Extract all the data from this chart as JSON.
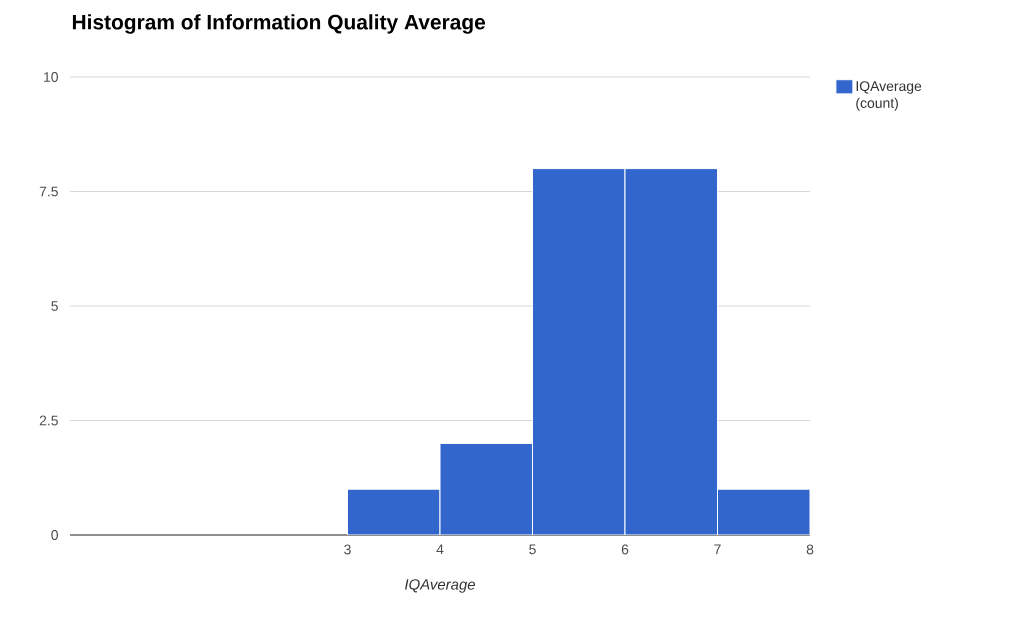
{
  "chart_data": {
    "type": "histogram",
    "title": "Histogram of Information Quality Average",
    "xlabel": "IQAverage",
    "bins": [
      3,
      4,
      5,
      6,
      7,
      8
    ],
    "series": [
      {
        "name": "IQAverage (count)",
        "color": "#3366cc",
        "values": [
          1,
          2,
          8,
          8,
          1
        ]
      }
    ],
    "xlim": [
      0,
      8
    ],
    "xticks": [
      3,
      4,
      5,
      6,
      7,
      8
    ],
    "ylim": [
      0,
      10
    ],
    "yticks": [
      0,
      2.5,
      5,
      7.5,
      10
    ],
    "grid": "y",
    "legend": "top right"
  }
}
